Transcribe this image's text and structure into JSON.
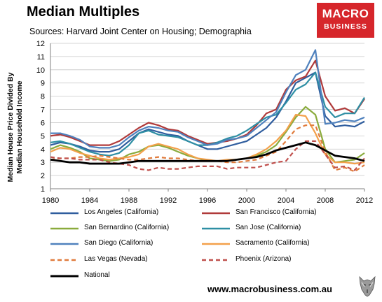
{
  "header": {
    "title": "Median Multiples",
    "subtitle": "Sources: Harvard Joint Center on Housing; Demographia"
  },
  "logo": {
    "line1": "MACRO",
    "line2": "BUSINESS",
    "color": "#d6262b"
  },
  "footer": {
    "url": "www.macrobusiness.com.au"
  },
  "chart_data": {
    "type": "line",
    "ylabel": "Median House Price Divided By Median Household Income",
    "ylabel_lines": [
      "Median House Price Divided By",
      "Median Household Income"
    ],
    "xlim": [
      1980,
      2012
    ],
    "ylim": [
      1,
      12
    ],
    "x_ticks": [
      1980,
      1984,
      1988,
      1992,
      1996,
      2000,
      2004,
      2008,
      2012
    ],
    "y_ticks": [
      1,
      2,
      3,
      4,
      5,
      6,
      7,
      8,
      9,
      10,
      11,
      12
    ],
    "grid": "horizontal",
    "legend": "below",
    "x": [
      1980,
      1981,
      1982,
      1983,
      1984,
      1985,
      1986,
      1987,
      1988,
      1989,
      1990,
      1991,
      1992,
      1993,
      1994,
      1995,
      1996,
      1997,
      1998,
      1999,
      2000,
      2001,
      2002,
      2003,
      2004,
      2005,
      2006,
      2007,
      2008,
      2009,
      2010,
      2011,
      2012
    ],
    "series": [
      {
        "name": "Los Angeles (California)",
        "color": "#2f5d9e",
        "dash": "solid",
        "values": [
          4.3,
          4.5,
          4.4,
          4.2,
          3.9,
          3.8,
          3.8,
          4.0,
          4.6,
          5.2,
          5.5,
          5.3,
          5.1,
          5.0,
          4.6,
          4.3,
          4.0,
          4.0,
          4.2,
          4.4,
          4.6,
          5.1,
          5.6,
          6.4,
          7.6,
          9.0,
          9.4,
          9.8,
          6.5,
          5.7,
          5.8,
          5.7,
          6.1
        ]
      },
      {
        "name": "San Francisco (California)",
        "color": "#b03a3a",
        "dash": "solid",
        "values": [
          5.0,
          5.1,
          4.9,
          4.6,
          4.3,
          4.3,
          4.3,
          4.6,
          5.1,
          5.6,
          6.0,
          5.8,
          5.5,
          5.4,
          5.0,
          4.7,
          4.4,
          4.5,
          4.6,
          4.8,
          5.1,
          5.8,
          6.7,
          7.0,
          8.5,
          9.2,
          9.5,
          10.7,
          8.0,
          6.9,
          7.1,
          6.7,
          7.8
        ]
      },
      {
        "name": "San Bernardino (California)",
        "color": "#8aab3c",
        "dash": "solid",
        "values": [
          4.0,
          4.3,
          4.1,
          3.8,
          3.3,
          3.2,
          3.1,
          3.2,
          3.6,
          3.8,
          4.2,
          4.3,
          4.1,
          3.8,
          3.5,
          3.3,
          3.1,
          3.1,
          3.1,
          3.2,
          3.3,
          3.5,
          3.8,
          4.3,
          5.3,
          6.4,
          7.2,
          6.6,
          4.0,
          3.0,
          3.1,
          3.2,
          3.7
        ]
      },
      {
        "name": "San Jose (California)",
        "color": "#2e8fa4",
        "dash": "solid",
        "values": [
          4.5,
          4.6,
          4.4,
          4.1,
          3.8,
          3.6,
          3.5,
          3.7,
          4.3,
          5.2,
          5.4,
          5.1,
          5.0,
          4.9,
          4.6,
          4.3,
          4.3,
          4.5,
          4.8,
          5.0,
          5.4,
          5.9,
          6.4,
          6.6,
          7.5,
          8.5,
          8.9,
          9.8,
          7.2,
          6.4,
          6.7,
          6.7,
          7.9
        ]
      },
      {
        "name": "San Diego (California)",
        "color": "#4f81bd",
        "dash": "solid",
        "values": [
          5.2,
          5.2,
          5.0,
          4.7,
          4.2,
          4.1,
          4.1,
          4.3,
          4.9,
          5.4,
          5.7,
          5.6,
          5.4,
          5.3,
          4.9,
          4.6,
          4.3,
          4.4,
          4.7,
          4.8,
          5.0,
          5.6,
          6.2,
          6.8,
          8.3,
          9.6,
          10.0,
          11.5,
          5.9,
          6.0,
          6.2,
          6.1,
          6.4
        ]
      },
      {
        "name": "Sacramento (California)",
        "color": "#f3a04a",
        "dash": "solid",
        "values": [
          3.8,
          4.1,
          4.0,
          3.7,
          3.5,
          3.3,
          3.2,
          3.3,
          3.4,
          3.6,
          4.2,
          4.4,
          4.2,
          4.0,
          3.6,
          3.3,
          3.2,
          3.1,
          3.2,
          3.2,
          3.3,
          3.6,
          4.0,
          4.6,
          5.4,
          6.6,
          6.5,
          5.2,
          3.6,
          3.0,
          3.0,
          2.9,
          3.0
        ]
      },
      {
        "name": "Las Vegas (Nevada)",
        "color": "#e07b3c",
        "dash": "dashed",
        "values": [
          3.2,
          3.3,
          3.3,
          3.4,
          3.4,
          3.5,
          3.4,
          3.3,
          3.2,
          3.2,
          3.3,
          3.4,
          3.3,
          3.3,
          3.2,
          3.1,
          3.1,
          3.1,
          3.0,
          3.0,
          3.1,
          3.2,
          3.5,
          3.8,
          4.6,
          5.5,
          5.8,
          5.8,
          3.8,
          2.4,
          2.6,
          2.3,
          2.8
        ]
      },
      {
        "name": "Phoenix (Arizona)",
        "color": "#c0504d",
        "dash": "dashed",
        "values": [
          3.4,
          3.3,
          3.3,
          3.2,
          3.2,
          3.2,
          3.0,
          2.9,
          2.8,
          2.5,
          2.4,
          2.6,
          2.5,
          2.5,
          2.6,
          2.7,
          2.7,
          2.7,
          2.5,
          2.6,
          2.6,
          2.6,
          2.8,
          3.0,
          3.1,
          4.0,
          4.6,
          4.6,
          3.6,
          2.6,
          2.7,
          2.4,
          3.3
        ]
      },
      {
        "name": "National",
        "color": "#000000",
        "dash": "solid-bold",
        "values": [
          3.2,
          3.1,
          3.0,
          3.0,
          2.9,
          2.9,
          2.9,
          2.9,
          3.0,
          3.1,
          3.1,
          3.1,
          3.1,
          3.1,
          3.1,
          3.1,
          3.1,
          3.1,
          3.1,
          3.2,
          3.3,
          3.4,
          3.6,
          3.9,
          4.1,
          4.3,
          4.5,
          4.3,
          3.9,
          3.5,
          3.4,
          3.3,
          3.1
        ]
      }
    ]
  }
}
